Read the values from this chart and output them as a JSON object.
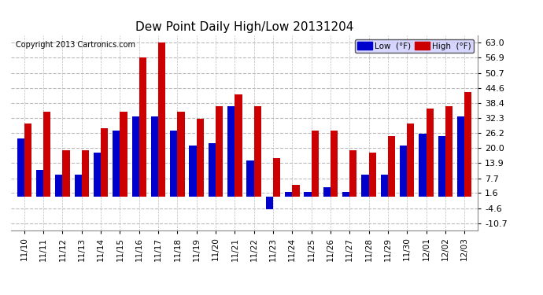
{
  "title": "Dew Point Daily High/Low 20131204",
  "copyright": "Copyright 2013 Cartronics.com",
  "categories": [
    "11/10",
    "11/11",
    "11/12",
    "11/13",
    "11/14",
    "11/15",
    "11/16",
    "11/17",
    "11/18",
    "11/19",
    "11/20",
    "11/21",
    "11/22",
    "11/23",
    "11/24",
    "11/25",
    "11/26",
    "11/27",
    "11/28",
    "11/29",
    "11/30",
    "12/01",
    "12/02",
    "12/03"
  ],
  "low_values": [
    24,
    11,
    9,
    9,
    18,
    27,
    33,
    33,
    27,
    21,
    22,
    37,
    15,
    -5,
    2,
    2,
    4,
    2,
    9,
    9,
    21,
    26,
    25,
    33
  ],
  "high_values": [
    30,
    35,
    19,
    19,
    28,
    35,
    57,
    63,
    35,
    32,
    37,
    42,
    37,
    16,
    5,
    27,
    27,
    19,
    18,
    25,
    30,
    36,
    37,
    43
  ],
  "low_color": "#0000cc",
  "high_color": "#cc0000",
  "bg_color": "#ffffff",
  "plot_bg_color": "#ffffff",
  "grid_color": "#bbbbbb",
  "yticks": [
    -10.7,
    -4.6,
    1.6,
    7.7,
    13.9,
    20.0,
    26.2,
    32.3,
    38.4,
    44.6,
    50.7,
    56.9,
    63.0
  ],
  "ylim": [
    -13.5,
    66.0
  ],
  "bar_width": 0.38,
  "legend_low_label": "Low  (°F)",
  "legend_high_label": "High  (°F)"
}
